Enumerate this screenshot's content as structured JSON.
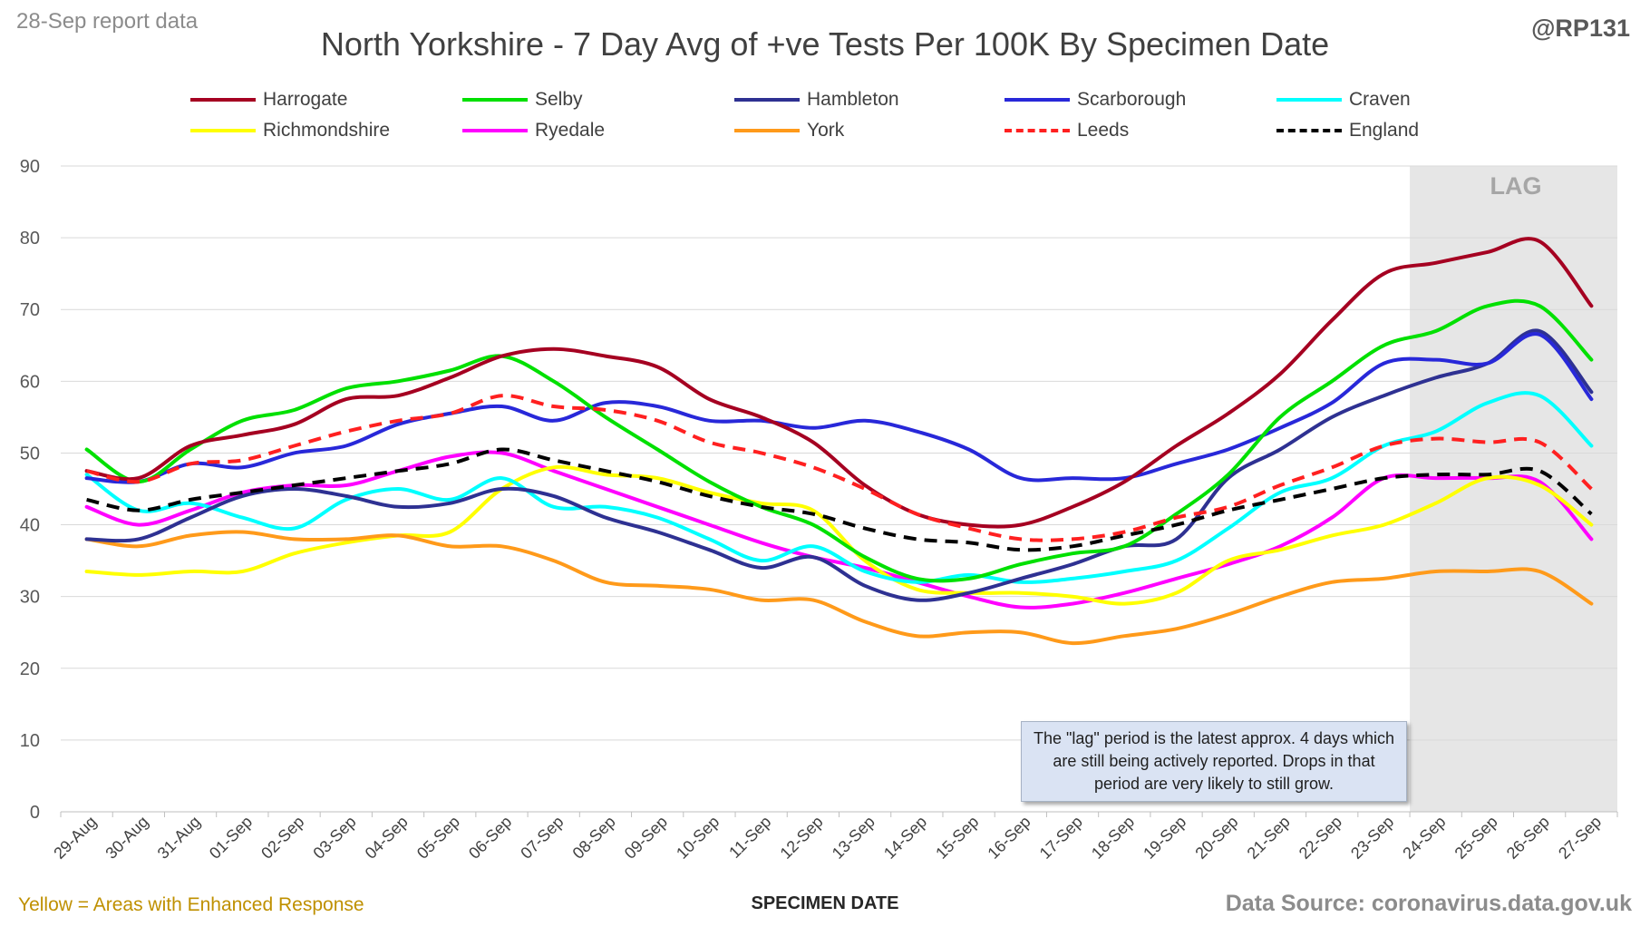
{
  "header": {
    "report_date": "28-Sep report data",
    "handle": "@RP131"
  },
  "footer": {
    "enhanced_note": "Yellow = Areas with Enhanced Response",
    "source": "Data Source: coronavirus.data.gov.uk"
  },
  "colors": {
    "lag_band": "#e6e6e6",
    "gridline": "#d9d9d9",
    "enhanced_note": "#bf9000",
    "note_background": "#dae3f3"
  },
  "chart_data": {
    "type": "line",
    "title": "North Yorkshire - 7 Day Avg of +ve Tests Per 100K By Specimen Date",
    "xlabel": "SPECIMEN DATE",
    "ylabel": "",
    "ylim": [
      0,
      90
    ],
    "yticks": [
      0,
      10,
      20,
      30,
      40,
      50,
      60,
      70,
      80,
      90
    ],
    "grid": true,
    "legend_position": "top",
    "categories": [
      "29-Aug",
      "30-Aug",
      "31-Aug",
      "01-Sep",
      "02-Sep",
      "03-Sep",
      "04-Sep",
      "05-Sep",
      "06-Sep",
      "07-Sep",
      "08-Sep",
      "09-Sep",
      "10-Sep",
      "11-Sep",
      "12-Sep",
      "13-Sep",
      "14-Sep",
      "15-Sep",
      "16-Sep",
      "17-Sep",
      "18-Sep",
      "19-Sep",
      "20-Sep",
      "21-Sep",
      "22-Sep",
      "23-Sep",
      "24-Sep",
      "25-Sep",
      "26-Sep",
      "27-Sep"
    ],
    "lag": {
      "label": "LAG",
      "start": "24-Sep",
      "end": "27-Sep"
    },
    "annotation": "The \"lag\" period is the latest approx. 4 days which are still being actively reported.  Drops in that period are very likely to still grow.",
    "series": [
      {
        "name": "Harrogate",
        "color": "#a50021",
        "dash": "solid",
        "values": [
          47.5,
          46.5,
          51,
          52.5,
          54,
          57.5,
          58,
          60.5,
          63.5,
          64.5,
          63.5,
          62,
          57.5,
          55,
          51.5,
          45.5,
          41.5,
          40,
          40,
          42.5,
          46,
          51,
          55.5,
          61,
          68.5,
          75,
          76.5,
          78,
          79.5,
          70.5
        ]
      },
      {
        "name": "Selby",
        "color": "#00e000",
        "dash": "solid",
        "values": [
          50.5,
          46,
          50.5,
          54.5,
          56,
          59,
          60,
          61.5,
          63.5,
          60,
          55,
          50.5,
          46,
          42.5,
          40,
          35.5,
          32.5,
          32.5,
          34.5,
          36,
          37,
          41.5,
          47,
          55,
          60,
          65,
          67,
          70.5,
          70.5,
          63
        ]
      },
      {
        "name": "Hambleton",
        "color": "#2e3192",
        "dash": "solid",
        "values": [
          38,
          38,
          41,
          44,
          45,
          44,
          42.5,
          43,
          45,
          44,
          41,
          39,
          36.5,
          34,
          35.5,
          31.5,
          29.5,
          30.5,
          32.5,
          34.5,
          37,
          38,
          46.5,
          50.5,
          55,
          58,
          60.5,
          62.5,
          67,
          58.5
        ]
      },
      {
        "name": "Scarborough",
        "color": "#2828d9",
        "dash": "solid",
        "values": [
          46.5,
          46,
          48.5,
          48,
          50,
          51,
          54,
          55.5,
          56.5,
          54.5,
          57,
          56.5,
          54.5,
          54.5,
          53.5,
          54.5,
          53,
          50.5,
          46.5,
          46.5,
          46.5,
          48.5,
          50.5,
          53.5,
          57,
          62.5,
          63,
          62.5,
          66.5,
          57.5
        ]
      },
      {
        "name": "Craven",
        "color": "#00ffff",
        "dash": "solid",
        "values": [
          47,
          42,
          43,
          41,
          39.5,
          43.5,
          45,
          43.5,
          46.5,
          42.5,
          42.5,
          41,
          38,
          35,
          37,
          33.5,
          32,
          33,
          32,
          32.5,
          33.5,
          35,
          39.5,
          44.5,
          46.5,
          51,
          53,
          57,
          58,
          51
        ]
      },
      {
        "name": "Richmondshire",
        "color": "#ffff00",
        "dash": "solid",
        "values": [
          33.5,
          33,
          33.5,
          33.5,
          36,
          37.5,
          38.5,
          39,
          45,
          48,
          47,
          46.5,
          44.5,
          43,
          42,
          35,
          31,
          30.5,
          30.5,
          30,
          29,
          30.5,
          35,
          36.5,
          38.5,
          40,
          43,
          46.5,
          45.5,
          40
        ]
      },
      {
        "name": "Ryedale",
        "color": "#ff00ff",
        "dash": "solid",
        "values": [
          42.5,
          40,
          42,
          44.5,
          45.5,
          45.5,
          47.5,
          49.5,
          50,
          47.5,
          45,
          42.5,
          40,
          37.5,
          35.5,
          34,
          32,
          30,
          28.5,
          29,
          30.5,
          32.5,
          34.5,
          37,
          41,
          46.5,
          46.5,
          46.5,
          46,
          38
        ]
      },
      {
        "name": "York",
        "color": "#ff9a1a",
        "dash": "solid",
        "values": [
          38,
          37,
          38.5,
          39,
          38,
          38,
          38.5,
          37,
          37,
          35,
          32,
          31.5,
          31,
          29.5,
          29.5,
          26.5,
          24.5,
          25,
          25,
          23.5,
          24.5,
          25.5,
          27.5,
          30,
          32,
          32.5,
          33.5,
          33.5,
          33.5,
          29
        ]
      },
      {
        "name": "Leeds",
        "color": "#ff2020",
        "dash": "dashed",
        "values": [
          47.5,
          46,
          48.5,
          49,
          51,
          53,
          54.5,
          55.5,
          58,
          56.5,
          56,
          54.5,
          51.5,
          50,
          48,
          45,
          41.5,
          39.5,
          38,
          38,
          39,
          41,
          42.5,
          45.5,
          48,
          51,
          52,
          51.5,
          51.5,
          45
        ]
      },
      {
        "name": "England",
        "color": "#000000",
        "dash": "dashed",
        "values": [
          43.5,
          42,
          43.5,
          44.5,
          45.5,
          46.5,
          47.5,
          48.5,
          50.5,
          49,
          47.5,
          46,
          44,
          42.5,
          41.5,
          39.5,
          38,
          37.5,
          36.5,
          37,
          38.5,
          40,
          42,
          43.5,
          45,
          46.5,
          47,
          47,
          47.5,
          41.5
        ]
      }
    ]
  }
}
